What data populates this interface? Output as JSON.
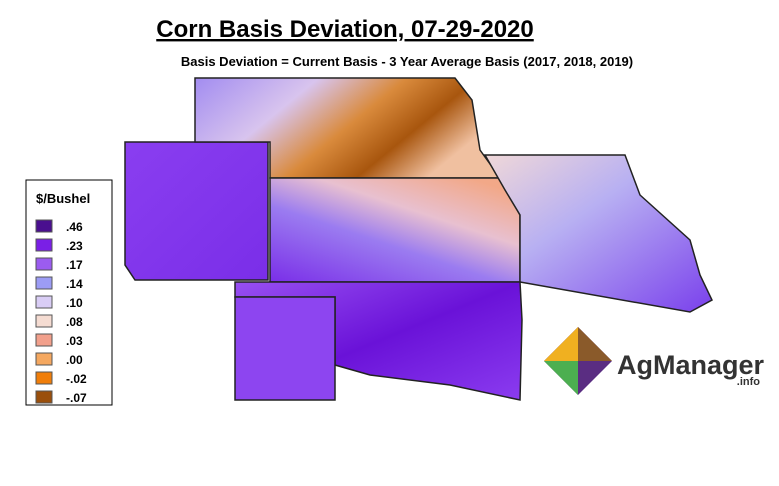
{
  "header": {
    "title": "Corn Basis Deviation, 07-29-2020",
    "subtitle": "Basis Deviation = Current Basis - 3 Year Average Basis (2017, 2018, 2019)"
  },
  "legend": {
    "title": "$/Bushel",
    "items": [
      {
        "label": ".46",
        "color": "#4a0f8f"
      },
      {
        "label": ".23",
        "color": "#7a1fe6"
      },
      {
        "label": ".17",
        "color": "#9b5cf0"
      },
      {
        "label": ".14",
        "color": "#9c9cf5"
      },
      {
        "label": ".10",
        "color": "#d9cdf5"
      },
      {
        "label": ".08",
        "color": "#f5dcd2"
      },
      {
        "label": ".03",
        "color": "#f2a08c"
      },
      {
        "label": ".00",
        "color": "#f5a860"
      },
      {
        "label": "-.02",
        "color": "#f07e0a"
      },
      {
        "label": "-.07",
        "color": "#9a4f0c"
      }
    ]
  },
  "logo": {
    "name": "AgManager",
    "suffix": ".info"
  }
}
